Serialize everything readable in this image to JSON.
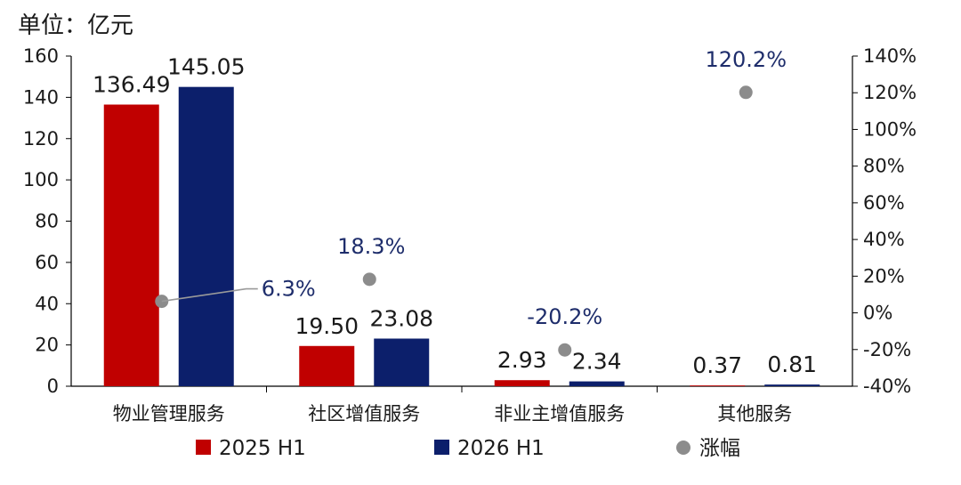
{
  "unit_label": "单位：亿元",
  "colors": {
    "s2025": "#c00000",
    "s2026": "#0c1f6b",
    "growth": "#8c8c8c",
    "growth_label": "#1e2d6b"
  },
  "chart_data": {
    "type": "bar",
    "categories": [
      "物业管理服务",
      "社区增值服务",
      "非业主增值服务",
      "其他服务"
    ],
    "series": [
      {
        "name": "2025 H1",
        "values": [
          136.49,
          19.5,
          2.93,
          0.37
        ],
        "labels": [
          "136.49",
          "19.50",
          "2.93",
          "0.37"
        ]
      },
      {
        "name": "2026 H1",
        "values": [
          145.05,
          23.08,
          2.34,
          0.81
        ],
        "labels": [
          "145.05",
          "23.08",
          "2.34",
          "0.81"
        ]
      }
    ],
    "secondary_series": {
      "name": "涨幅",
      "type": "scatter",
      "values": [
        6.3,
        18.3,
        -20.2,
        120.2
      ],
      "labels": [
        "6.3%",
        "18.3%",
        "-20.2%",
        "120.2%"
      ]
    },
    "y_left": {
      "lim": [
        0,
        160
      ],
      "ticks": [
        "0",
        "20",
        "40",
        "60",
        "80",
        "100",
        "120",
        "140",
        "160"
      ]
    },
    "y_right": {
      "lim": [
        -40,
        140
      ],
      "ticks": [
        "-40%",
        "-20%",
        "0%",
        "20%",
        "40%",
        "60%",
        "80%",
        "100%",
        "120%",
        "140%"
      ]
    },
    "legend": {
      "position": "bottom",
      "items": [
        "2025 H1",
        "2026 H1",
        "涨幅"
      ]
    },
    "grid": false
  }
}
